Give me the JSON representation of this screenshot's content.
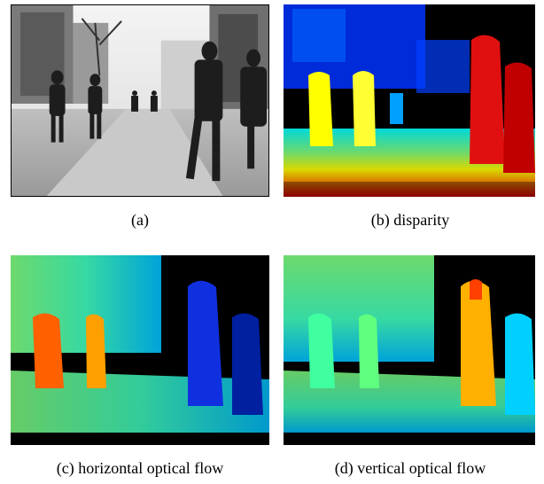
{
  "figure": {
    "panels": [
      {
        "id": "a",
        "caption": "(a)",
        "content": "grayscale street photo with pedestrians"
      },
      {
        "id": "b",
        "caption": "(b) disparity",
        "content": "jet-colormap disparity map"
      },
      {
        "id": "c",
        "caption": "(c) horizontal optical flow",
        "content": "jet-colormap horizontal flow map"
      },
      {
        "id": "d",
        "caption": "(d) vertical optical flow",
        "content": "jet-colormap vertical flow map"
      }
    ],
    "colormap": [
      "#00008f",
      "#0000ff",
      "#00ffff",
      "#80ff80",
      "#ffff00",
      "#ff8000",
      "#ff0000",
      "#800000"
    ]
  }
}
